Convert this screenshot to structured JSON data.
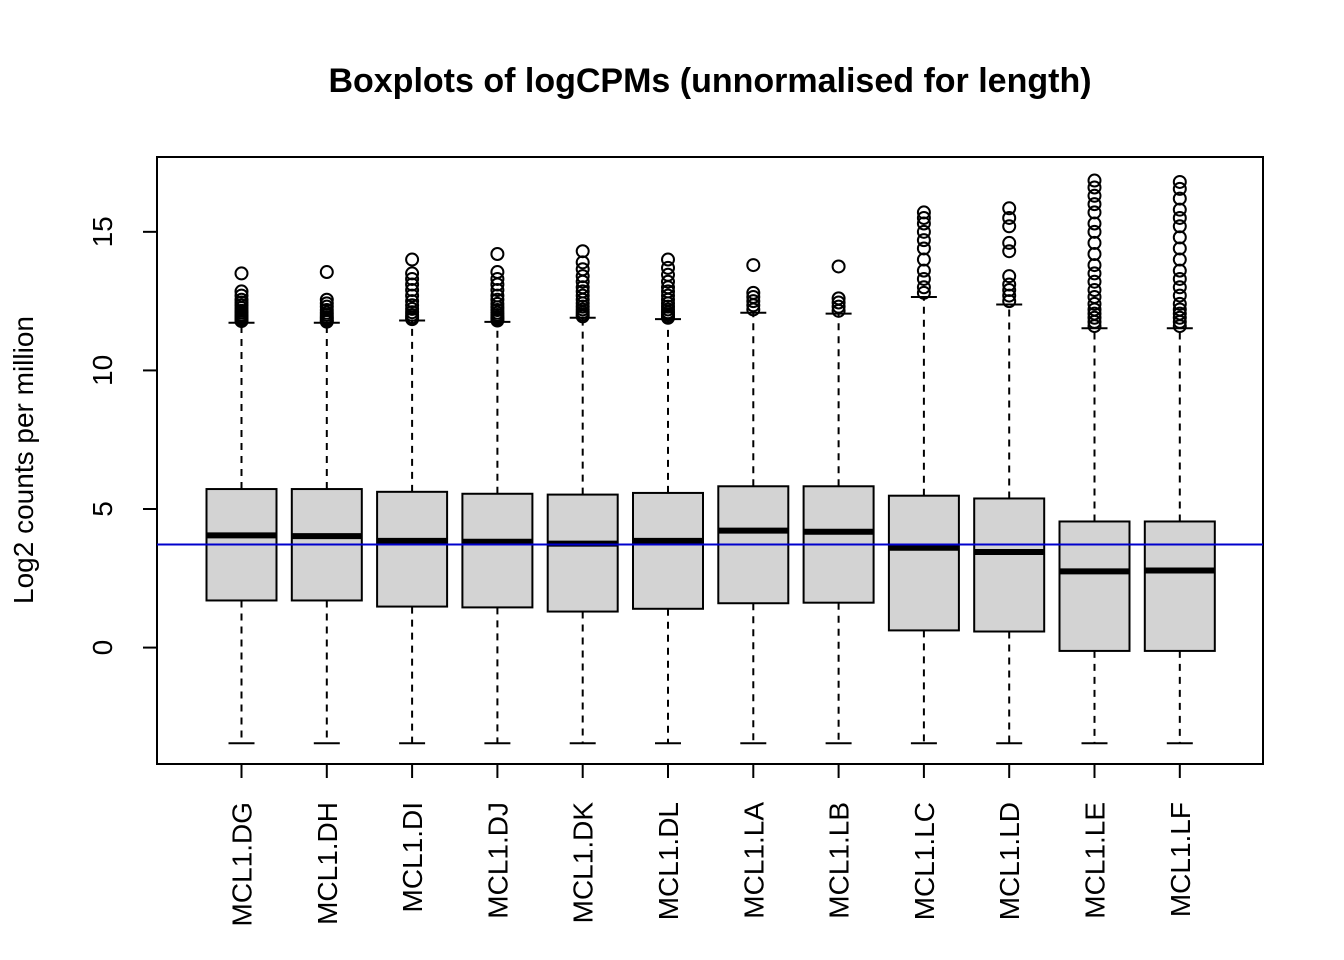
{
  "chart_data": {
    "type": "boxplot",
    "title": "Boxplots of logCPMs (unnormalised for length)",
    "xlabel": "",
    "ylabel": "Log2 counts per million",
    "ylim": [
      -4.2,
      17.7
    ],
    "yticks": [
      0,
      5,
      10,
      15
    ],
    "categories": [
      "MCL1.DG",
      "MCL1.DH",
      "MCL1.DI",
      "MCL1.DJ",
      "MCL1.DK",
      "MCL1.DL",
      "MCL1.LA",
      "MCL1.LB",
      "MCL1.LC",
      "MCL1.LD",
      "MCL1.LE",
      "MCL1.LF"
    ],
    "reference_line": {
      "y": 3.72,
      "color": "#0000cc"
    },
    "box_fill": "#d3d3d3",
    "boxes": [
      {
        "lower_whisker": -3.45,
        "q1": 1.7,
        "median": 4.05,
        "q3": 5.72,
        "upper_whisker": 11.72,
        "outliers": [
          11.78,
          11.82,
          11.88,
          11.95,
          12.0,
          12.08,
          12.15,
          12.25,
          12.35,
          12.45,
          12.55,
          12.7,
          12.85,
          13.5
        ]
      },
      {
        "lower_whisker": -3.45,
        "q1": 1.7,
        "median": 4.02,
        "q3": 5.72,
        "upper_whisker": 11.72,
        "outliers": [
          11.76,
          11.8,
          11.86,
          11.92,
          12.0,
          12.08,
          12.18,
          12.3,
          12.42,
          12.55,
          13.55
        ]
      },
      {
        "lower_whisker": -3.45,
        "q1": 1.48,
        "median": 3.85,
        "q3": 5.62,
        "upper_whisker": 11.8,
        "outliers": [
          11.85,
          11.92,
          12.0,
          12.1,
          12.22,
          12.35,
          12.5,
          12.7,
          12.9,
          13.1,
          13.3,
          13.5,
          14.0
        ]
      },
      {
        "lower_whisker": -3.45,
        "q1": 1.45,
        "median": 3.82,
        "q3": 5.55,
        "upper_whisker": 11.75,
        "outliers": [
          11.8,
          11.86,
          11.92,
          12.0,
          12.08,
          12.18,
          12.28,
          12.4,
          12.55,
          12.7,
          12.9,
          13.1,
          13.3,
          13.55,
          14.2
        ]
      },
      {
        "lower_whisker": -3.45,
        "q1": 1.3,
        "median": 3.75,
        "q3": 5.52,
        "upper_whisker": 11.9,
        "outliers": [
          11.95,
          12.02,
          12.1,
          12.2,
          12.3,
          12.42,
          12.55,
          12.7,
          12.85,
          13.0,
          13.2,
          13.4,
          13.65,
          13.9,
          14.3
        ]
      },
      {
        "lower_whisker": -3.45,
        "q1": 1.4,
        "median": 3.85,
        "q3": 5.58,
        "upper_whisker": 11.85,
        "outliers": [
          11.9,
          11.95,
          12.02,
          12.1,
          12.2,
          12.3,
          12.42,
          12.55,
          12.7,
          12.85,
          13.0,
          13.2,
          13.45,
          13.7,
          14.0
        ]
      },
      {
        "lower_whisker": -3.45,
        "q1": 1.6,
        "median": 4.22,
        "q3": 5.82,
        "upper_whisker": 12.08,
        "outliers": [
          12.2,
          12.35,
          12.5,
          12.65,
          12.8,
          13.8
        ]
      },
      {
        "lower_whisker": -3.45,
        "q1": 1.62,
        "median": 4.18,
        "q3": 5.82,
        "upper_whisker": 12.05,
        "outliers": [
          12.15,
          12.3,
          12.45,
          12.6,
          13.75
        ]
      },
      {
        "lower_whisker": -3.45,
        "q1": 0.62,
        "median": 3.6,
        "q3": 5.48,
        "upper_whisker": 12.65,
        "outliers": [
          12.8,
          13.0,
          13.3,
          13.6,
          14.0,
          14.4,
          14.7,
          15.0,
          15.3,
          15.5,
          15.7
        ]
      },
      {
        "lower_whisker": -3.45,
        "q1": 0.58,
        "median": 3.45,
        "q3": 5.38,
        "upper_whisker": 12.38,
        "outliers": [
          12.5,
          12.7,
          12.9,
          13.1,
          13.4,
          14.3,
          14.6,
          15.2,
          15.5,
          15.85
        ]
      },
      {
        "lower_whisker": -3.45,
        "q1": -0.12,
        "median": 2.75,
        "q3": 4.55,
        "upper_whisker": 11.52,
        "outliers": [
          11.6,
          11.75,
          11.9,
          12.05,
          12.2,
          12.4,
          12.65,
          12.9,
          13.2,
          13.5,
          13.8,
          14.2,
          14.6,
          15.0,
          15.3,
          15.7,
          16.0,
          16.3,
          16.6,
          16.85
        ]
      },
      {
        "lower_whisker": -3.45,
        "q1": -0.12,
        "median": 2.78,
        "q3": 4.55,
        "upper_whisker": 11.52,
        "outliers": [
          11.6,
          11.75,
          11.9,
          12.05,
          12.2,
          12.4,
          12.7,
          13.0,
          13.3,
          13.6,
          14.0,
          14.4,
          14.8,
          15.2,
          15.5,
          15.8,
          16.2,
          16.55,
          16.8
        ]
      }
    ]
  }
}
